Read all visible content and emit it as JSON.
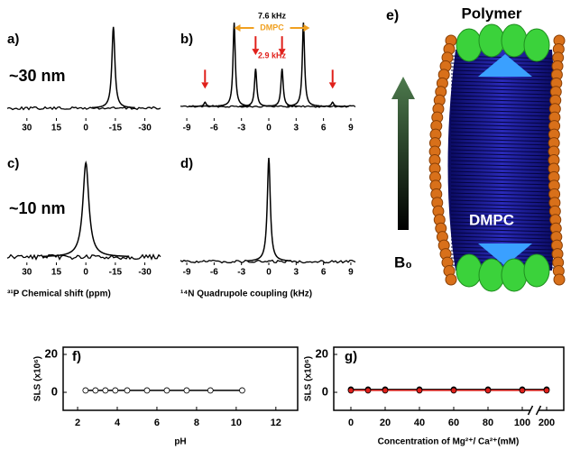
{
  "chart_data": [
    {
      "type": "spectrum",
      "label": "a)",
      "annotation": "~30 nm",
      "xlim": [
        40,
        -38
      ],
      "xticks": [
        30,
        15,
        0,
        -15,
        -30
      ],
      "ylim": [
        0,
        1
      ],
      "series": [
        {
          "color": "#000000",
          "x": [
            -14
          ],
          "values": [
            0.95
          ]
        }
      ]
    },
    {
      "type": "spectrum",
      "label": "b)",
      "annotations": [
        "7.6 kHz",
        "DMPC",
        "2.9 kHz"
      ],
      "xlim": [
        -9.7,
        9.6
      ],
      "xticks": [
        -9,
        -6,
        -3,
        0,
        3,
        6,
        9
      ],
      "ylim": [
        0,
        1
      ],
      "series": [
        {
          "color": "#000000",
          "x": [
            -7.0,
            -3.8,
            -1.45,
            1.45,
            3.8,
            7.0
          ],
          "values": [
            0.05,
            1.0,
            0.45,
            0.45,
            1.0,
            0.05
          ]
        }
      ]
    },
    {
      "type": "spectrum",
      "label": "c)",
      "annotation": "~10 nm",
      "xlabel": "³¹P Chemical shift (ppm)",
      "xlim": [
        40,
        -38
      ],
      "xticks": [
        30,
        15,
        0,
        -15,
        -30
      ],
      "ylim": [
        0,
        1
      ],
      "series": [
        {
          "color": "#000000",
          "x": [
            0
          ],
          "values": [
            0.95
          ]
        }
      ]
    },
    {
      "type": "spectrum",
      "label": "d)",
      "xlabel": "¹⁴N Quadrupole coupling (kHz)",
      "xlim": [
        -9.7,
        9.6
      ],
      "xticks": [
        -9,
        -6,
        -3,
        0,
        3,
        6,
        9
      ],
      "ylim": [
        0,
        1
      ],
      "series": [
        {
          "color": "#000000",
          "x": [
            0
          ],
          "values": [
            1.0
          ]
        }
      ]
    },
    {
      "type": "scatter-line",
      "label": "f)",
      "ylabel": "SLS (x10⁶)",
      "xlabel": "pH",
      "xlim": [
        1.27,
        13.1
      ],
      "xticks": [
        2,
        4,
        6,
        8,
        10,
        12
      ],
      "ylim": [
        -9.5,
        23.8
      ],
      "yticks": [
        0,
        20
      ],
      "series": [
        {
          "color": "#000000",
          "marker": "open",
          "x": [
            2.4,
            2.9,
            3.4,
            3.9,
            4.5,
            5.5,
            6.5,
            7.5,
            8.7,
            10.3
          ],
          "values": [
            1,
            1,
            1,
            1,
            1,
            1,
            1,
            1,
            1,
            1
          ]
        }
      ]
    },
    {
      "type": "scatter-line",
      "label": "g)",
      "ylabel": "SLS (x10⁶)",
      "xlabel": "Concentration of Mg²⁺/ Ca²⁺(mM)",
      "xlim": [
        -10,
        210
      ],
      "axis_break": [
        105,
        195
      ],
      "xticks": [
        0,
        20,
        40,
        60,
        80,
        100,
        200
      ],
      "ylim": [
        -9.5,
        23.8
      ],
      "yticks": [
        0,
        20
      ],
      "series": [
        {
          "color": "#000000",
          "marker": "filled",
          "x": [
            0,
            10,
            20,
            40,
            60,
            80,
            100,
            200
          ],
          "values": [
            1.5,
            1.5,
            1.5,
            1.5,
            1.5,
            1.5,
            1.5,
            1.5
          ]
        },
        {
          "color": "#e0201b",
          "marker": "filled",
          "x": [
            0,
            10,
            20,
            40,
            60,
            80,
            100,
            200
          ],
          "values": [
            1,
            1,
            1,
            1,
            1,
            1,
            1,
            1
          ]
        }
      ]
    }
  ],
  "panel_e": {
    "label": "e)",
    "polymer": "Polymer",
    "lipid": "DMPC",
    "field": "B₀"
  }
}
